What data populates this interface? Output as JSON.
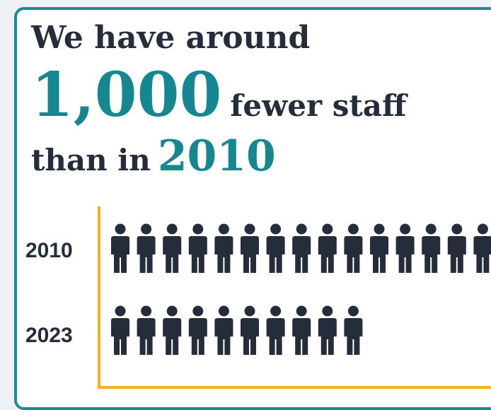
{
  "headline": {
    "line1": "We have around",
    "big_number": "1,000",
    "line2_rest": "fewer staff",
    "line3_text": "than in",
    "line3_year": "2010"
  },
  "chart_data": {
    "type": "bar",
    "categories": [
      "2010",
      "2023"
    ],
    "values": [
      15,
      10
    ],
    "title": "",
    "xlabel": "",
    "ylabel": "",
    "colors": {
      "figure": "#262d3a",
      "axis": "#f2b21b",
      "accent": "#148790",
      "border": "#1a8a96"
    },
    "icon": "person-icon"
  }
}
